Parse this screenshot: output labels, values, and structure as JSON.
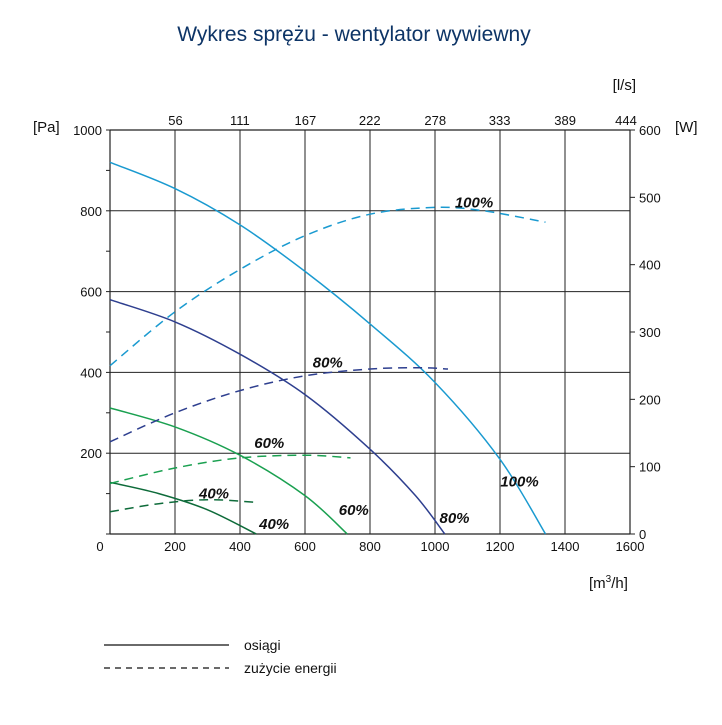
{
  "chart_data": {
    "type": "line",
    "title": "Wykres sprężu - wentylator wywiewny",
    "x_unit_bottom": "[m3/h]",
    "x_unit_bottom_base": "[m",
    "x_unit_bottom_sup": "3",
    "x_unit_bottom_tail": "/h]",
    "x_unit_top": "[l/s]",
    "y_unit_left": "[Pa]",
    "y_unit_right": "[W]",
    "xlim": [
      0,
      1600
    ],
    "ylim_left": [
      0,
      1000
    ],
    "ylim_right": [
      0,
      600
    ],
    "x_ticks": [
      "0",
      "200",
      "400",
      "600",
      "800",
      "1000",
      "1200",
      "1400",
      "1600"
    ],
    "x_top_ticks": [
      "56",
      "111",
      "167",
      "222",
      "278",
      "333",
      "389",
      "444"
    ],
    "y_left_ticks": [
      "200",
      "400",
      "600",
      "800",
      "1000"
    ],
    "y_right_ticks": [
      "0",
      "100",
      "200",
      "300",
      "400",
      "500",
      "600"
    ],
    "grid": true,
    "series": [
      {
        "name": "100%",
        "kind": "pressure",
        "axis": "left",
        "color": "#1a9ad0",
        "x": [
          0,
          200,
          400,
          600,
          800,
          1000,
          1200,
          1340
        ],
        "y": [
          920,
          855,
          765,
          650,
          520,
          375,
          185,
          0
        ]
      },
      {
        "name": "80%",
        "kind": "pressure",
        "axis": "left",
        "color": "#2e3f8f",
        "x": [
          0,
          200,
          400,
          600,
          800,
          940,
          1030
        ],
        "y": [
          580,
          525,
          445,
          345,
          210,
          95,
          0
        ]
      },
      {
        "name": "60%",
        "kind": "pressure",
        "axis": "left",
        "color": "#1aa050",
        "x": [
          0,
          200,
          400,
          600,
          730
        ],
        "y": [
          312,
          265,
          195,
          95,
          0
        ]
      },
      {
        "name": "40%",
        "kind": "pressure",
        "axis": "left",
        "color": "#0e6b3a",
        "x": [
          0,
          150,
          300,
          450
        ],
        "y": [
          128,
          100,
          60,
          0
        ]
      },
      {
        "name": "100%",
        "kind": "power",
        "axis": "right",
        "color": "#1a9ad0",
        "x": [
          0,
          200,
          400,
          600,
          800,
          1000,
          1150,
          1340
        ],
        "y": [
          250,
          330,
          393,
          443,
          475,
          485,
          480,
          463
        ]
      },
      {
        "name": "80%",
        "kind": "power",
        "axis": "right",
        "color": "#2e3f8f",
        "x": [
          0,
          200,
          400,
          600,
          800,
          950,
          1040
        ],
        "y": [
          137,
          180,
          213,
          235,
          245,
          247,
          245
        ]
      },
      {
        "name": "60%",
        "kind": "power",
        "axis": "right",
        "color": "#1aa050",
        "x": [
          0,
          200,
          400,
          600,
          740
        ],
        "y": [
          75,
          98,
          113,
          117,
          113
        ]
      },
      {
        "name": "40%",
        "kind": "power",
        "axis": "right",
        "color": "#0e6b3a",
        "x": [
          0,
          150,
          300,
          450
        ],
        "y": [
          33,
          45,
          51,
          47
        ]
      }
    ],
    "annotations": [
      {
        "text": "100%",
        "x": 1120,
        "y": 820
      },
      {
        "text": "80%",
        "x": 670,
        "y": 425
      },
      {
        "text": "60%",
        "x": 490,
        "y": 225
      },
      {
        "text": "40%",
        "x": 320,
        "y": 100
      },
      {
        "text": "100%",
        "x": 1260,
        "y": 130
      },
      {
        "text": "80%",
        "x": 1060,
        "y": 40
      },
      {
        "text": "60%",
        "x": 750,
        "y": 60
      },
      {
        "text": "40%",
        "x": 505,
        "y": 25
      }
    ],
    "legend": [
      {
        "label": "osiągi",
        "style": "solid"
      },
      {
        "label": "zużycie energii",
        "style": "dashed"
      }
    ]
  }
}
